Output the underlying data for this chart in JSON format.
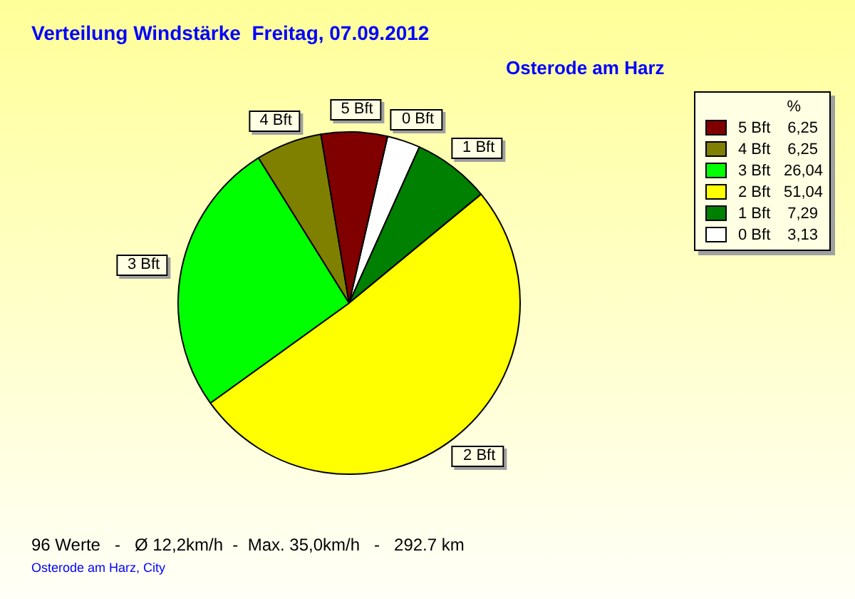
{
  "chart_data": {
    "type": "pie",
    "title": "Verteilung Windstärke  Freitag, 07.09.2012",
    "subtitle": "Osterode am Harz",
    "legend_title": "%",
    "categories": [
      "5 Bft",
      "4 Bft",
      "3 Bft",
      "2 Bft",
      "1 Bft",
      "0 Bft"
    ],
    "values": [
      6.25,
      6.25,
      26.04,
      51.04,
      7.29,
      3.13
    ],
    "value_labels": [
      "6,25",
      "6,25",
      "26,04",
      "51,04",
      "7,29",
      "3,13"
    ],
    "colors": [
      "#800000",
      "#808000",
      "#00ff00",
      "#ffff00",
      "#008000",
      "#ffffff"
    ],
    "legend": "top right",
    "annotations": [
      "96 Werte   -   Ø 12,2km/h  -  Max. 35,0km/h   -   292.7 km",
      "Osterode am Harz, City"
    ]
  }
}
